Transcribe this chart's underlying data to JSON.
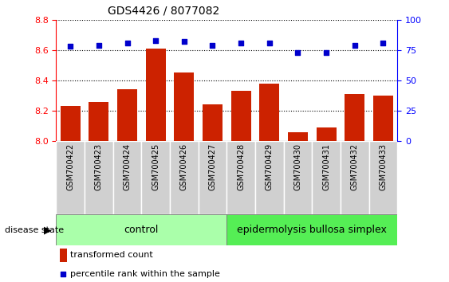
{
  "title": "GDS4426 / 8077082",
  "samples": [
    "GSM700422",
    "GSM700423",
    "GSM700424",
    "GSM700425",
    "GSM700426",
    "GSM700427",
    "GSM700428",
    "GSM700429",
    "GSM700430",
    "GSM700431",
    "GSM700432",
    "GSM700433"
  ],
  "bar_values": [
    8.23,
    8.26,
    8.34,
    8.61,
    8.45,
    8.24,
    8.33,
    8.38,
    8.06,
    8.09,
    8.31,
    8.3
  ],
  "dot_values": [
    78,
    79,
    81,
    83,
    82,
    79,
    81,
    81,
    73,
    73,
    79,
    81
  ],
  "bar_color": "#cc2200",
  "dot_color": "#0000cc",
  "ylim_left": [
    8.0,
    8.8
  ],
  "ylim_right": [
    0,
    100
  ],
  "yticks_left": [
    8.0,
    8.2,
    8.4,
    8.6,
    8.8
  ],
  "yticks_right": [
    0,
    25,
    50,
    75,
    100
  ],
  "control_samples": 6,
  "control_label": "control",
  "disease_label": "epidermolysis bullosa simplex",
  "control_color": "#aaffaa",
  "disease_color": "#55ee55",
  "legend_bar_label": "transformed count",
  "legend_dot_label": "percentile rank within the sample",
  "disease_state_label": "disease state",
  "xtick_bg": "#d0d0d0",
  "bar_width": 0.7
}
